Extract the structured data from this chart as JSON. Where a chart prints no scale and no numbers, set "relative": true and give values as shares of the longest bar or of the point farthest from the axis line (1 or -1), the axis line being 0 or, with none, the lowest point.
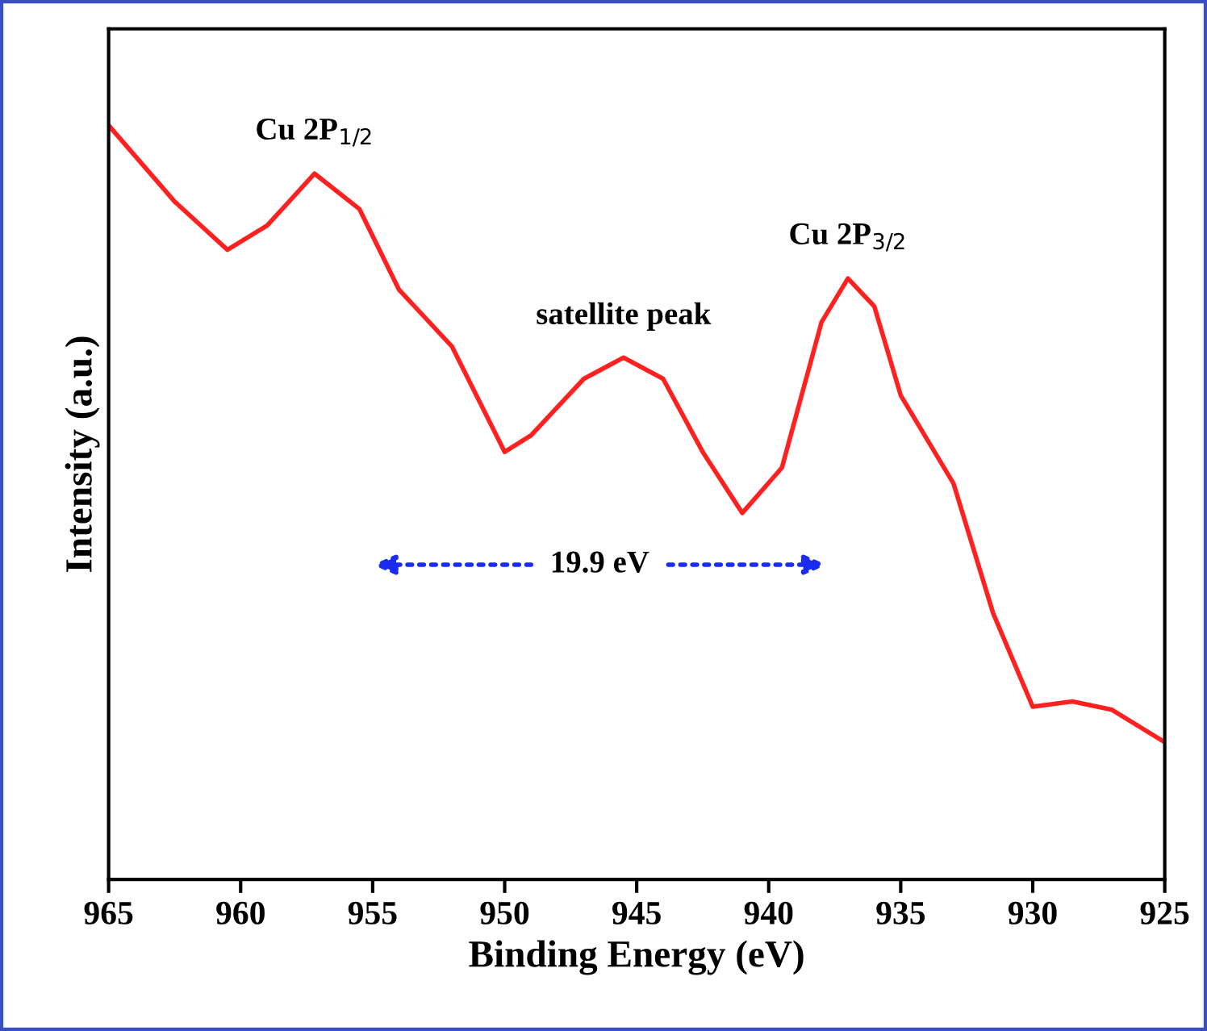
{
  "chart_data": {
    "type": "line",
    "relative": true,
    "xlabel": "Binding Energy (eV)",
    "ylabel": "Intensity (a.u.)",
    "x": [
      965,
      962.5,
      960.5,
      959,
      957.2,
      955.5,
      954,
      952,
      950,
      949,
      947,
      945.5,
      944,
      942.5,
      941,
      939.5,
      938,
      937,
      936,
      935,
      933,
      931.5,
      930,
      928.5,
      927,
      925
    ],
    "series": [
      {
        "color": "#ff2020",
        "values": [
          1,
          0.899,
          0.835,
          0.867,
          0.936,
          0.889,
          0.782,
          0.707,
          0.567,
          0.589,
          0.664,
          0.692,
          0.664,
          0.567,
          0.486,
          0.546,
          0.739,
          0.797,
          0.76,
          0.642,
          0.525,
          0.353,
          0.229,
          0.236,
          0.225,
          0.182
        ]
      }
    ],
    "xlim": [
      965,
      925
    ],
    "xticks": [
      965,
      960,
      955,
      950,
      945,
      940,
      935,
      930,
      925
    ],
    "annotations": [
      {
        "text": "Cu 2P$_{1/2}$",
        "x": 957.2,
        "y": 0.936
      },
      {
        "text": "satellite peak",
        "x": 945.5,
        "y": 0.692
      },
      {
        "text": "Cu 2P$_{3/2}$",
        "x": 937,
        "y": 0.797
      },
      "19.9 eV"
    ],
    "grid": false,
    "marker": "none",
    "line_style": "solid"
  }
}
